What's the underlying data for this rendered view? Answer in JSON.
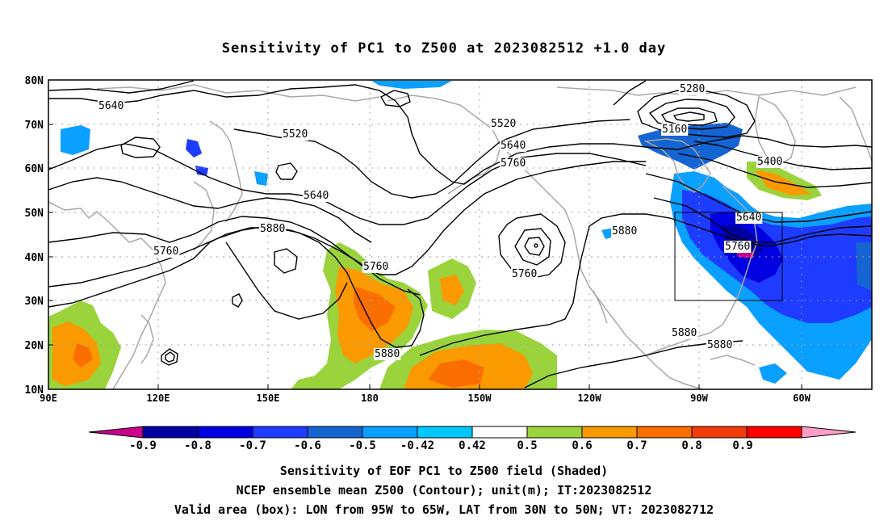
{
  "title": "Sensitivity of PC1 to Z500 at 2023082512 +1.0 day",
  "lat_ticks": [
    "80N",
    "70N",
    "60N",
    "50N",
    "40N",
    "30N",
    "20N",
    "10N"
  ],
  "lon_ticks": [
    "90E",
    "120E",
    "150E",
    "180",
    "150W",
    "120W",
    "90W",
    "60W"
  ],
  "colorbar": {
    "labels": [
      "-0.9",
      "-0.8",
      "-0.7",
      "-0.6",
      "-0.5",
      "-0.42",
      "0.42",
      "0.5",
      "0.6",
      "0.7",
      "0.8",
      "0.9"
    ],
    "colors": [
      "#c8008c",
      "#0000a0",
      "#0000e0",
      "#1e3cff",
      "#1464d2",
      "#0aa0ff",
      "#00c8ff",
      "#ffffff",
      "#9ad33c",
      "#fa9a00",
      "#fa6e00",
      "#f03c0a",
      "#ff0000",
      "#ff9fc8"
    ]
  },
  "contour_labels": [
    "5640",
    "5520",
    "5640",
    "5880",
    "5760",
    "5760",
    "5880",
    "5520",
    "5640",
    "5760",
    "5760",
    "5280",
    "5160",
    "5400",
    "5640",
    "5760",
    "5880",
    "5880",
    "5880"
  ],
  "valid_box": {
    "lon_from": "95W",
    "lon_to": "65W",
    "lat_from": "30N",
    "lat_to": "50N"
  },
  "captions": [
    "Sensitivity of EOF PC1 to Z500 field (Shaded)",
    "NCEP ensemble mean Z500 (Contour); unit(m); IT:2023082512",
    "Valid area (box): LON from 95W to 65W, LAT from 30N to 50N; VT: 2023082712"
  ],
  "colors": {
    "contour": "#000000",
    "coastline": "#a8a8a8",
    "grid": "#a0a0a0",
    "negative_strong": "#0000e0",
    "negative_mid": "#1e3cff",
    "negative_light": "#0aa0ff",
    "positive_light": "#9ad33c",
    "positive_mid": "#fa9a00",
    "positive_strong": "#fa6e00"
  }
}
